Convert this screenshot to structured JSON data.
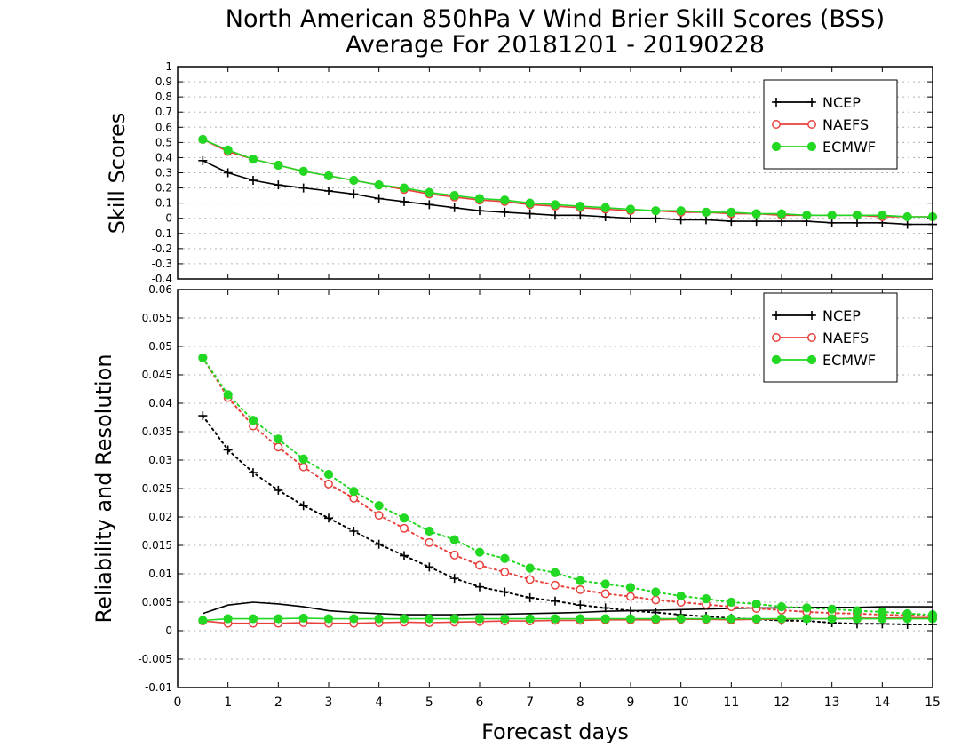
{
  "colors": {
    "NCEP": "#000000",
    "NAEFS": "#e8403c",
    "ECMWF": "#22d822"
  },
  "chart_data": [
    {
      "type": "line",
      "title": "North American 850hPa V Wind Brier Skill Scores (BSS)",
      "subtitle": "Average For 20181201 - 20190228",
      "ylabel": "Skill Scores",
      "ylim": [
        -0.4,
        1
      ],
      "yticks": [
        1,
        0.9,
        0.8,
        0.7,
        0.6,
        0.5,
        0.4,
        0.3,
        0.2,
        0.1,
        0,
        -0.1,
        -0.2,
        -0.3,
        -0.4
      ],
      "ytick_labels": [
        "1",
        "0.9",
        "0.8",
        "0.7",
        "0.6",
        "0.5",
        "0.4",
        "0.3",
        "0.2",
        "0.1",
        "0",
        "-0.1",
        "-0.2",
        "-0.3",
        "-0.4"
      ],
      "grid": true,
      "legend_position": "top-right",
      "x": [
        0.5,
        1,
        1.5,
        2,
        2.5,
        3,
        3.5,
        4,
        4.5,
        5,
        5.5,
        6,
        6.5,
        7,
        7.5,
        8,
        8.5,
        9,
        9.5,
        10,
        10.5,
        11,
        11.5,
        12,
        12.5,
        13,
        13.5,
        14,
        14.5,
        15
      ],
      "series": [
        {
          "name": "NCEP",
          "marker": "plus",
          "line": "solid",
          "values": [
            0.38,
            0.3,
            0.25,
            0.22,
            0.2,
            0.18,
            0.16,
            0.13,
            0.11,
            0.09,
            0.07,
            0.05,
            0.04,
            0.03,
            0.02,
            0.02,
            0.01,
            0.0,
            0.0,
            -0.01,
            -0.01,
            -0.02,
            -0.02,
            -0.02,
            -0.02,
            -0.03,
            -0.03,
            -0.03,
            -0.04,
            -0.04
          ]
        },
        {
          "name": "NAEFS",
          "marker": "open-circle",
          "line": "solid",
          "values": [
            0.52,
            0.44,
            0.39,
            0.35,
            0.31,
            0.28,
            0.25,
            0.22,
            0.19,
            0.16,
            0.14,
            0.12,
            0.11,
            0.09,
            0.08,
            0.07,
            0.06,
            0.05,
            0.05,
            0.04,
            0.04,
            0.03,
            0.03,
            0.02,
            0.02,
            0.02,
            0.02,
            0.01,
            0.01,
            0.01
          ]
        },
        {
          "name": "ECMWF",
          "marker": "filled-circle",
          "line": "solid",
          "values": [
            0.52,
            0.45,
            0.39,
            0.35,
            0.31,
            0.28,
            0.25,
            0.22,
            0.2,
            0.17,
            0.15,
            0.13,
            0.12,
            0.1,
            0.09,
            0.08,
            0.07,
            0.06,
            0.05,
            0.05,
            0.04,
            0.04,
            0.03,
            0.03,
            0.02,
            0.02,
            0.02,
            0.02,
            0.01,
            0.01
          ]
        }
      ]
    },
    {
      "type": "line",
      "ylabel": "Reliability and Resolution",
      "xlabel": "Forecast days",
      "ylim": [
        -0.01,
        0.06
      ],
      "yticks": [
        0.06,
        0.055,
        0.05,
        0.045,
        0.04,
        0.035,
        0.03,
        0.025,
        0.02,
        0.015,
        0.01,
        0.005,
        0,
        -0.005,
        -0.01
      ],
      "ytick_labels": [
        "0.06",
        "0.055",
        "0.05",
        "0.045",
        "0.04",
        "0.035",
        "0.03",
        "0.025",
        "0.02",
        "0.015",
        "0.01",
        "0.005",
        "0",
        "-0.005",
        "-0.01"
      ],
      "xlim": [
        0,
        15
      ],
      "xticks": [
        0,
        1,
        2,
        3,
        4,
        5,
        6,
        7,
        8,
        9,
        10,
        11,
        12,
        13,
        14,
        15
      ],
      "xtick_labels": [
        "0",
        "1",
        "2",
        "3",
        "4",
        "5",
        "6",
        "7",
        "8",
        "9",
        "10",
        "11",
        "12",
        "13",
        "14",
        "15"
      ],
      "grid": true,
      "legend_position": "top-right",
      "x": [
        0.5,
        1,
        1.5,
        2,
        2.5,
        3,
        3.5,
        4,
        4.5,
        5,
        5.5,
        6,
        6.5,
        7,
        7.5,
        8,
        8.5,
        9,
        9.5,
        10,
        10.5,
        11,
        11.5,
        12,
        12.5,
        13,
        13.5,
        14,
        14.5,
        15
      ],
      "series": [
        {
          "name": "NCEP",
          "marker": "plus",
          "line": "dotted",
          "values": [
            0.0378,
            0.0318,
            0.0278,
            0.0247,
            0.022,
            0.0198,
            0.0175,
            0.0152,
            0.0132,
            0.0112,
            0.0092,
            0.0077,
            0.0068,
            0.0058,
            0.0052,
            0.0045,
            0.004,
            0.0035,
            0.0032,
            0.0028,
            0.0025,
            0.0022,
            0.002,
            0.0018,
            0.0017,
            0.0014,
            0.0012,
            0.0012,
            0.0011,
            0.0011
          ]
        },
        {
          "name": "NCEP",
          "marker": "none",
          "line": "solid",
          "values": [
            0.003,
            0.0045,
            0.005,
            0.0047,
            0.0042,
            0.0035,
            0.0032,
            0.003,
            0.0028,
            0.0028,
            0.0028,
            0.0029,
            0.0029,
            0.003,
            0.0031,
            0.0032,
            0.0034,
            0.0035,
            0.0036,
            0.0037,
            0.0038,
            0.0039,
            0.004,
            0.004,
            0.0041,
            0.0041,
            0.0041,
            0.0042,
            0.0042,
            0.0042
          ]
        },
        {
          "name": "NAEFS",
          "marker": "open-circle",
          "line": "dotted",
          "values": [
            0.048,
            0.041,
            0.036,
            0.0323,
            0.0288,
            0.0258,
            0.0233,
            0.0203,
            0.018,
            0.0155,
            0.0133,
            0.0115,
            0.0103,
            0.009,
            0.008,
            0.0072,
            0.0065,
            0.006,
            0.0054,
            0.005,
            0.0046,
            0.0042,
            0.0039,
            0.0036,
            0.0033,
            0.0031,
            0.003,
            0.0028,
            0.0027,
            0.0026
          ]
        },
        {
          "name": "NAEFS",
          "marker": "open-circle",
          "line": "solid",
          "values": [
            0.0017,
            0.0013,
            0.0013,
            0.0013,
            0.0014,
            0.0013,
            0.0013,
            0.0014,
            0.0015,
            0.0014,
            0.0015,
            0.0016,
            0.0017,
            0.0017,
            0.0018,
            0.0018,
            0.0019,
            0.0019,
            0.0019,
            0.002,
            0.002,
            0.0019,
            0.002,
            0.002,
            0.0021,
            0.0021,
            0.0022,
            0.0022,
            0.0023,
            0.0023
          ]
        },
        {
          "name": "ECMWF",
          "marker": "filled-circle",
          "line": "dotted",
          "values": [
            0.048,
            0.0415,
            0.037,
            0.0337,
            0.0302,
            0.0275,
            0.0245,
            0.022,
            0.0198,
            0.0175,
            0.016,
            0.0138,
            0.0127,
            0.011,
            0.0102,
            0.0088,
            0.0082,
            0.0076,
            0.0068,
            0.0061,
            0.0056,
            0.005,
            0.0047,
            0.0042,
            0.004,
            0.0038,
            0.0035,
            0.0033,
            0.003,
            0.0028
          ]
        },
        {
          "name": "ECMWF",
          "marker": "filled-circle",
          "line": "solid",
          "values": [
            0.0018,
            0.0021,
            0.0021,
            0.0021,
            0.0022,
            0.0021,
            0.0021,
            0.0021,
            0.0021,
            0.0021,
            0.0021,
            0.0021,
            0.0021,
            0.0021,
            0.0021,
            0.0021,
            0.0021,
            0.0021,
            0.0021,
            0.0021,
            0.0021,
            0.0021,
            0.0021,
            0.0021,
            0.0021,
            0.0021,
            0.0021,
            0.0021,
            0.0021,
            0.0021
          ]
        }
      ]
    }
  ],
  "legend": {
    "entries": [
      "NCEP",
      "NAEFS",
      "ECMWF"
    ]
  }
}
